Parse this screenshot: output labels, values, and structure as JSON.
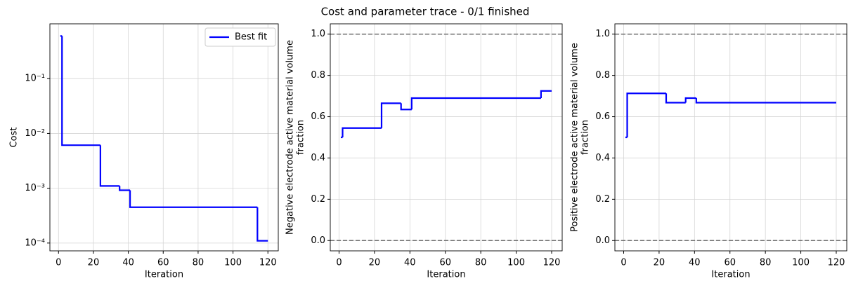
{
  "chart_data": [
    {
      "type": "line",
      "drawstyle": "steps-post",
      "title": "Cost and parameter trace - 0/1 finished",
      "xlabel": "Iteration",
      "ylabel": [
        "Cost"
      ],
      "yscale": "log",
      "grid": true,
      "legend": "upper right",
      "xlim": [
        -4.95,
        125.95
      ],
      "xticks": [
        0,
        20,
        40,
        60,
        80,
        100,
        120
      ],
      "ylim": [
        7.2e-05,
        1.0
      ],
      "yticks": [
        {
          "value": 0.0001,
          "label": "10⁻⁴"
        },
        {
          "value": 0.001,
          "label": "10⁻³"
        },
        {
          "value": 0.01,
          "label": "10⁻²"
        },
        {
          "value": 0.1,
          "label": "10⁻¹"
        }
      ],
      "series": [
        {
          "name": "Best fit",
          "color": "#0000ff",
          "x": [
            1,
            2,
            24,
            35,
            41,
            114,
            120
          ],
          "values": [
            0.6,
            0.0061,
            0.0011,
            0.00092,
            0.00045,
            0.00011,
            0.00011
          ]
        }
      ]
    },
    {
      "type": "line",
      "drawstyle": "steps-post",
      "xlabel": "Iteration",
      "ylabel": [
        "Negative electrode active material volume",
        "fraction"
      ],
      "grid": true,
      "xlim": [
        -4.95,
        125.95
      ],
      "xticks": [
        0,
        20,
        40,
        60,
        80,
        100,
        120
      ],
      "ylim": [
        -0.05,
        1.05
      ],
      "yticks": [
        {
          "value": 0,
          "label": "0.0"
        },
        {
          "value": 0.2,
          "label": "0.2"
        },
        {
          "value": 0.4,
          "label": "0.4"
        },
        {
          "value": 0.6,
          "label": "0.6"
        },
        {
          "value": 0.8,
          "label": "0.8"
        },
        {
          "value": 1,
          "label": "1.0"
        }
      ],
      "bounds": [
        0,
        1
      ],
      "bounds_color": "#707070",
      "series": [
        {
          "color": "#0000ff",
          "x": [
            1,
            2,
            24,
            35,
            41,
            114,
            120
          ],
          "values": [
            0.5,
            0.545,
            0.665,
            0.635,
            0.69,
            0.725,
            0.725
          ]
        }
      ]
    },
    {
      "type": "line",
      "drawstyle": "steps-post",
      "xlabel": "Iteration",
      "ylabel": [
        "Positive electrode active material volume",
        "fraction"
      ],
      "grid": true,
      "xlim": [
        -4.95,
        125.95
      ],
      "xticks": [
        0,
        20,
        40,
        60,
        80,
        100,
        120
      ],
      "ylim": [
        -0.05,
        1.05
      ],
      "yticks": [
        {
          "value": 0,
          "label": "0.0"
        },
        {
          "value": 0.2,
          "label": "0.2"
        },
        {
          "value": 0.4,
          "label": "0.4"
        },
        {
          "value": 0.6,
          "label": "0.6"
        },
        {
          "value": 0.8,
          "label": "0.8"
        },
        {
          "value": 1,
          "label": "1.0"
        }
      ],
      "bounds": [
        0,
        1
      ],
      "bounds_color": "#707070",
      "series": [
        {
          "color": "#0000ff",
          "x": [
            1,
            2,
            24,
            35,
            41,
            120
          ],
          "values": [
            0.5,
            0.713,
            0.668,
            0.69,
            0.668,
            0.668
          ]
        }
      ]
    }
  ]
}
